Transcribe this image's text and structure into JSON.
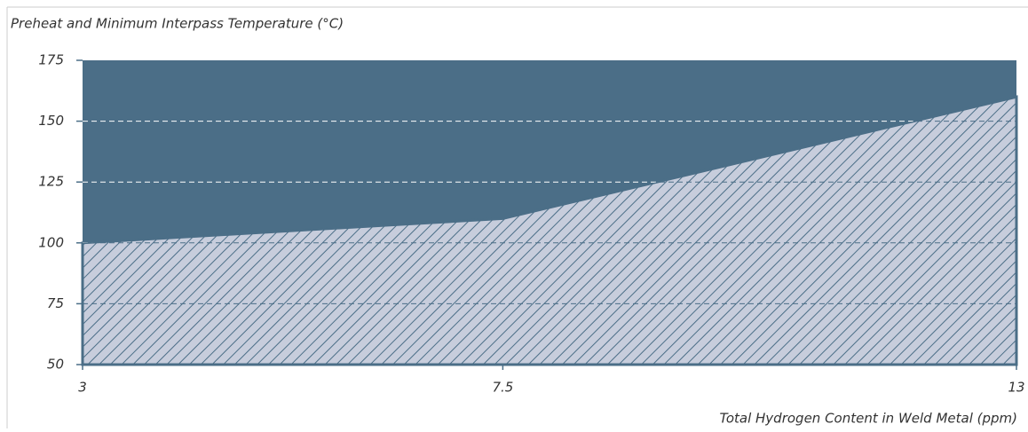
{
  "chart_data": {
    "type": "area",
    "title": "Preheat and Minimum Interpass Temperature (°C)",
    "x_label": "Total Hydrogen Content in Weld Metal (ppm)",
    "x": [
      3,
      7.5,
      13
    ],
    "values": [
      100,
      110,
      160
    ],
    "xlim": [
      3,
      13
    ],
    "xticks": [
      3,
      7.5,
      13
    ],
    "ylim": [
      50,
      175
    ],
    "yticks": [
      50,
      75,
      100,
      125,
      150,
      175
    ],
    "color": "#4b6e87",
    "hatch_color": "#c7cddc",
    "grid": true
  }
}
